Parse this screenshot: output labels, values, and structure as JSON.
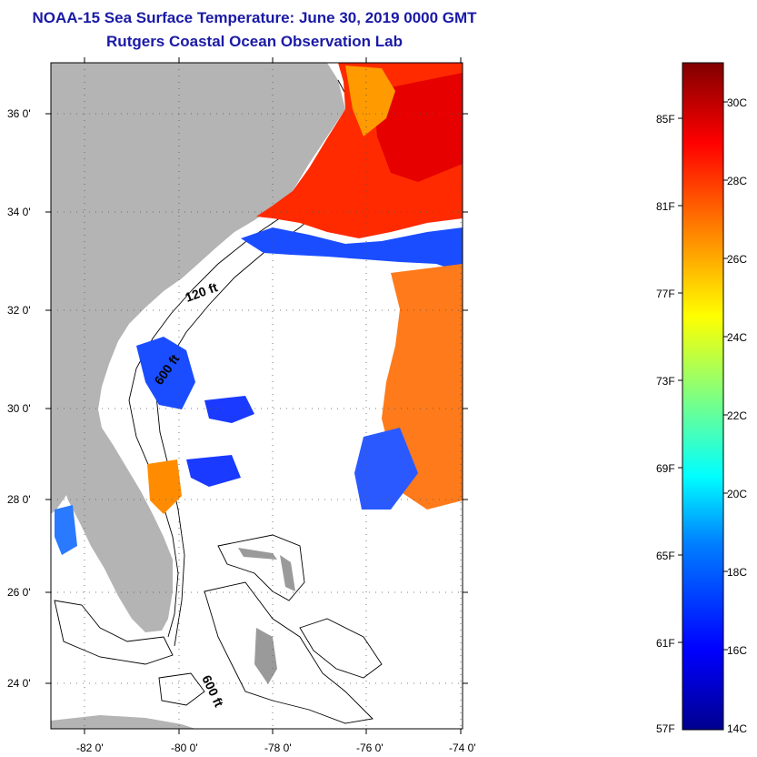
{
  "header": {
    "title": "NOAA-15 Sea Surface Temperature:  June 30, 2019 0000 GMT",
    "subtitle": "Rutgers Coastal Ocean Observation Lab"
  },
  "map": {
    "lat_labels": [
      "36 0'",
      "34 0'",
      "32 0'",
      "30 0'",
      "28 0'",
      "26 0'",
      "24 0'"
    ],
    "lon_labels": [
      "-82 0'",
      "-80 0'",
      "-78 0'",
      "-76 0'",
      "-74 0'"
    ],
    "contour_labels": [
      "120 ft",
      "600 ft",
      "600 ft"
    ],
    "colors": {
      "land": "#b4b4b4",
      "ocean": "#ffffff"
    }
  },
  "colorbar": {
    "fahrenheit_labels": [
      "85F",
      "81F",
      "77F",
      "73F",
      "69F",
      "65F",
      "61F",
      "57F"
    ],
    "celsius_labels": [
      "30C",
      "28C",
      "26C",
      "24C",
      "22C",
      "20C",
      "18C",
      "16C",
      "14C"
    ],
    "stops": [
      "#00008f",
      "#0000ff",
      "#0080ff",
      "#00ffff",
      "#80ff80",
      "#ffff00",
      "#ff8000",
      "#ff0000",
      "#800000"
    ]
  }
}
